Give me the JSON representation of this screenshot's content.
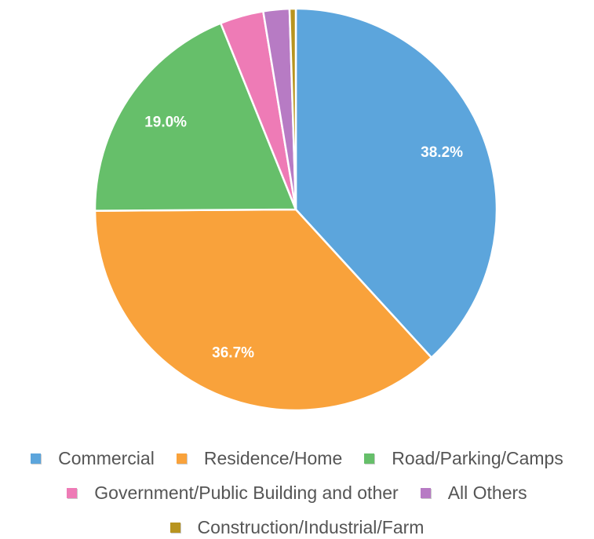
{
  "chart_data": {
    "type": "pie",
    "categories": [
      "Commercial",
      "Residence/Home",
      "Road/Parking/Camps",
      "Government/Public Building and other",
      "All Others",
      "Construction/Industrial/Farm"
    ],
    "values": [
      38.2,
      36.7,
      19.0,
      3.5,
      2.1,
      0.5
    ],
    "data_labels": [
      "38.2%",
      "36.7%",
      "19.0%",
      "",
      "",
      ""
    ],
    "colors": [
      "#5ca5dc",
      "#f9a23b",
      "#66bf6a",
      "#ee7bb6",
      "#b77bc4",
      "#b8941f"
    ],
    "start_angle_deg": 0,
    "direction": "clockwise",
    "legend_position": "bottom"
  },
  "legend": {
    "rows": [
      [
        0,
        1,
        2
      ],
      [
        3,
        4
      ],
      [
        5
      ]
    ]
  }
}
